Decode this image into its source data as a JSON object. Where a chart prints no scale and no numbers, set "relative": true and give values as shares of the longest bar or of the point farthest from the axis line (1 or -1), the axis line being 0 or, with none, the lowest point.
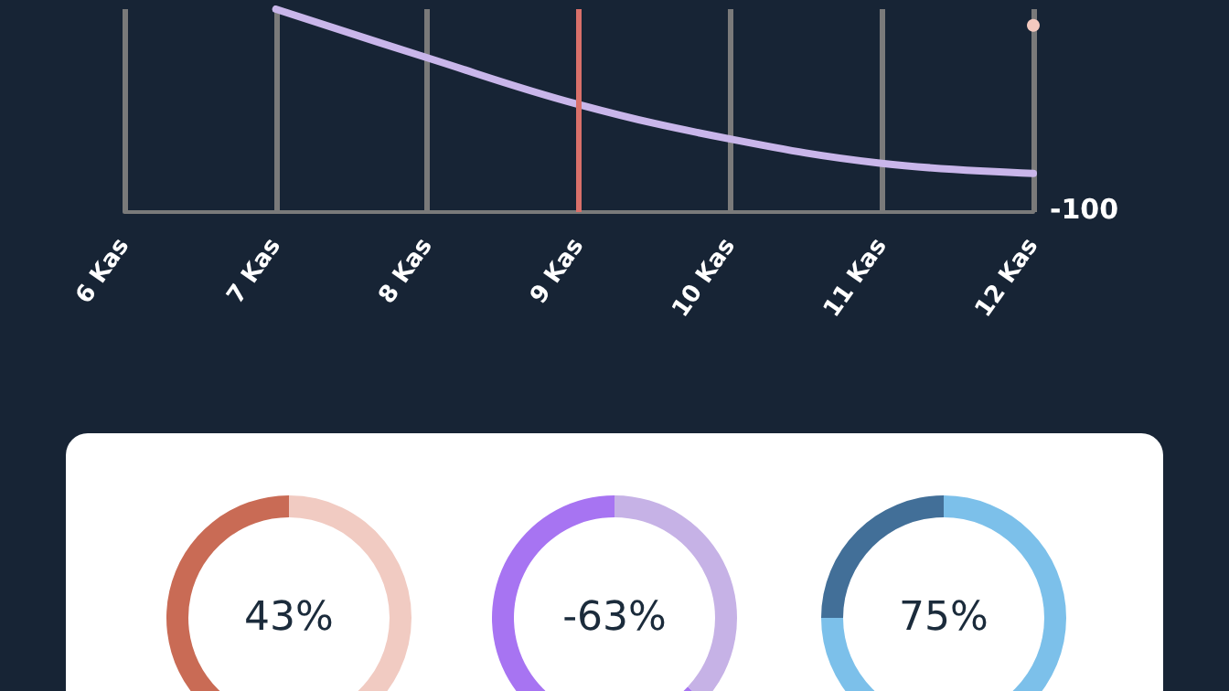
{
  "chart_data": [
    {
      "type": "line",
      "relative": true,
      "categories": [
        "6 Kas",
        "7 Kas",
        "8 Kas",
        "9 Kas",
        "10 Kas",
        "11 Kas",
        "12 Kas"
      ],
      "series": [
        {
          "color": "#c9b6ea",
          "values": [
            null,
            1,
            0.76,
            0.53,
            0.36,
            0.24,
            0.19
          ]
        },
        {
          "color": "#f3c9bf",
          "marker": "circle",
          "values": [
            null,
            null,
            null,
            null,
            null,
            null,
            0.92
          ]
        }
      ],
      "grid": "x",
      "ref_lines": [
        {
          "axis": "x",
          "value": "9 Kas",
          "color": "#d9706a"
        }
      ],
      "annotations": [
        "-100"
      ]
    },
    {
      "type": "donut",
      "title": "43%",
      "categories": [
        null,
        null
      ],
      "values": [
        43,
        57
      ],
      "colors": [
        "#c96b55",
        "#f1cbc2"
      ]
    },
    {
      "type": "donut",
      "title": "-63%",
      "categories": [
        null,
        null
      ],
      "values": [
        63,
        37
      ],
      "colors": [
        "#a774f2",
        "#c6b2e6"
      ]
    },
    {
      "type": "donut",
      "title": "75%",
      "categories": [
        null,
        null
      ],
      "values": [
        25,
        75
      ],
      "colors": [
        "#426f98",
        "#7cc0ea"
      ]
    }
  ]
}
